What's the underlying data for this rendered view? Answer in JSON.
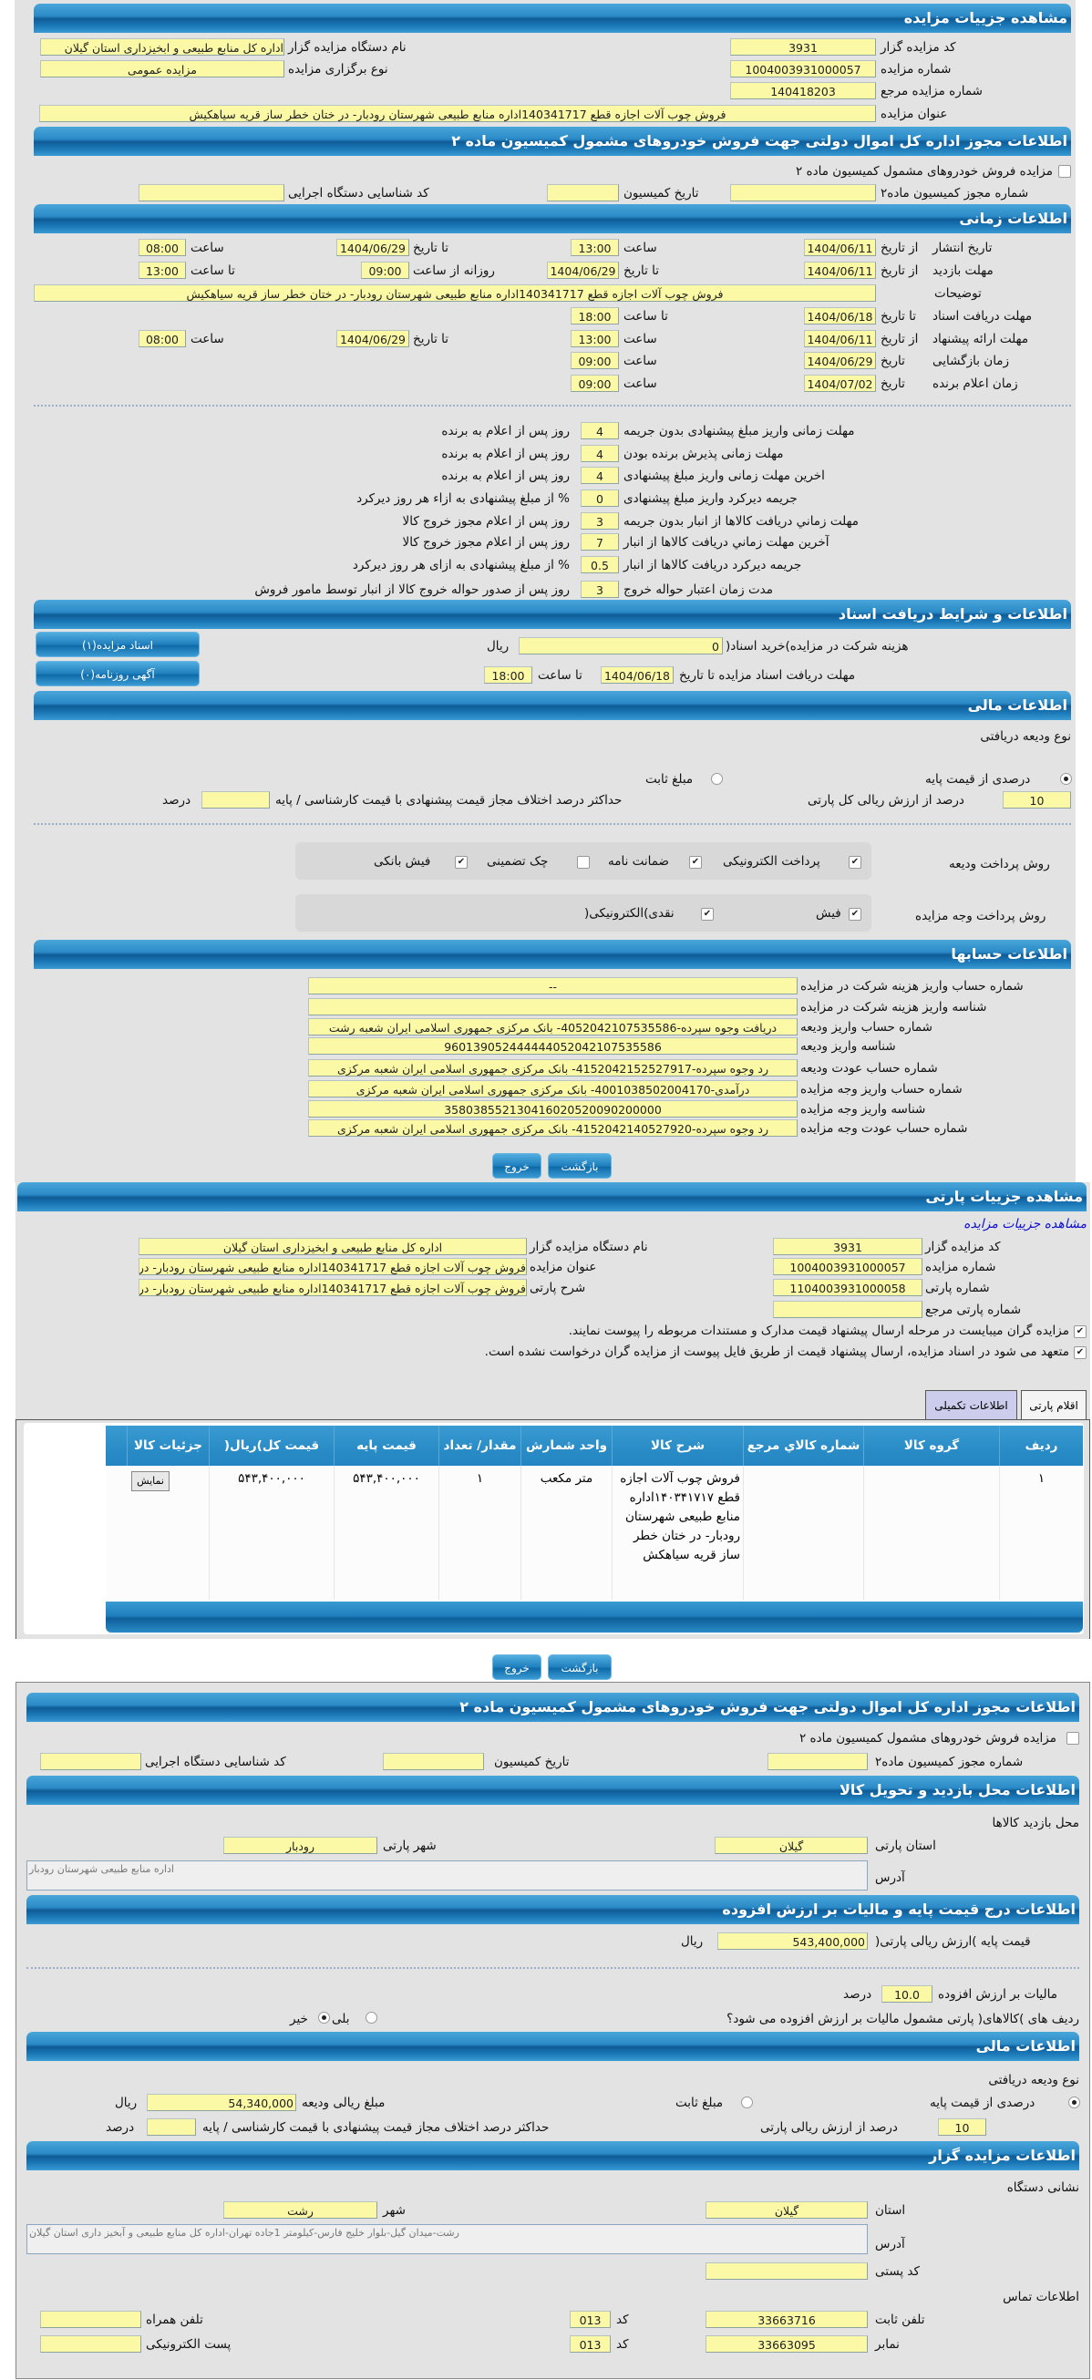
{
  "auction": {
    "title": "مشاهده جزییات مزایده",
    "auctioneer_code_label": "کد مزایده گزار",
    "auctioneer_code": "3931",
    "org_label": "نام دستگاه مزایده گزار",
    "org": "اداره کل منابع طبیعی و ابخیزداری استان گیلان",
    "number_label": "شماره مزایده",
    "number": "1004003931000057",
    "type_label": "نوع برگزاری مزایده",
    "type": "مزایده عمومی",
    "ref_label": "شماره مزایده مرجع",
    "ref": "140418203",
    "subject_label": "عنوان مزایده",
    "subject": "فروش چوب آلات اجازه قطع 140341717اداره منابع طبیعی شهرستان رودبار- در ختان خطر ساز قریه سیاهکیش"
  },
  "permit": {
    "title": "اطلاعات مجوز اداره کل اموال دولتی جهت فروش خودروهای مشمول کمیسیون ماده ۲",
    "checkbox_label": "مزایده فروش خودروهای مشمول کمیسیون ماده ۲",
    "checked": false,
    "permit_no_label": "شماره مجوز کمیسیون ماده۲",
    "permit_no": "",
    "date_label": "تاریخ کمیسیون",
    "date": "",
    "exec_id_label": "کد شناسایی دستگاه اجرایی",
    "exec_id": ""
  },
  "timing": {
    "title": "اطلاعات زمانی",
    "publish_label": "تاریخ انتشار",
    "from_date": "از تاریخ",
    "to_date": "تا تاریخ",
    "time": "ساعت",
    "to_time": "تا ساعت",
    "date": "تاریخ",
    "daily_from": "روزانه از ساعت",
    "publish_from": "1404/06/11",
    "publish_from_time": "13:00",
    "publish_to": "1404/06/29",
    "publish_to_time": "08:00",
    "visit_label": "مهلت بازدید",
    "visit_from": "1404/06/11",
    "visit_to": "1404/06/29",
    "visit_daily_from": "09:00",
    "visit_to_time": "13:00",
    "desc_label": "توضیحات",
    "desc": "فروش چوب آلات اجازه قطع 140341717اداره منابع طبیعی شهرستان رودبار- در ختان خطر ساز قریه سیاهکیش",
    "docs_label": "مهلت دریافت اسناد",
    "docs_to": "1404/06/18",
    "docs_to_time": "18:00",
    "offer_label": "مهلت ارائه پیشنهاد",
    "offer_from": "1404/06/11",
    "offer_from_time": "13:00",
    "offer_to": "1404/06/29",
    "offer_to_time": "08:00",
    "open_label": "زمان بازگشایی",
    "open_date": "1404/06/29",
    "open_time": "09:00",
    "winner_label": "زمان اعلام برنده",
    "winner_date": "1404/07/02",
    "winner_time": "09:00"
  },
  "terms": [
    {
      "label": "مهلت زمانی واریز مبلغ پیشنهادی بدون جریمه",
      "value": "4",
      "suffix": "روز پس از اعلام به برنده"
    },
    {
      "label": "مهلت زمانی پذیرش برنده بودن",
      "value": "4",
      "suffix": "روز پس از اعلام به برنده"
    },
    {
      "label": "اخرین مهلت زمانی واریز مبلغ پیشنهادی",
      "value": "4",
      "suffix": "روز پس از اعلام به برنده"
    },
    {
      "label": "جریمه دیرکرد واریز مبلغ پیشنهادی",
      "value": "0",
      "suffix": "% از مبلغ پیشنهادی به ازاء هر روز دیرکرد"
    },
    {
      "label": "مهلت زماني دريافت كالاها از انبار بدون جريمه",
      "value": "3",
      "suffix": "روز پس از اعلام مجوز خروج کالا"
    },
    {
      "label": "آخرين مهلت زماني دريافت كالاها از انبار",
      "value": "7",
      "suffix": "روز پس از اعلام مجوز خروج کالا"
    },
    {
      "label": "جریمه دیرکرد دریافت کالاها از انبار",
      "value": "0.5",
      "suffix": "% از مبلغ پیشنهادی به ازای هر روز دیرکرد"
    },
    {
      "label": "مدت زمان اعتبار حواله خروج",
      "value": "3",
      "suffix": "روز پس از صدور حواله خروج کالا از انبار توسط مامور فروش"
    }
  ],
  "docs": {
    "title": "اطلاعات و شرایط دریافت اسناد",
    "fee_label": "هزینه شرکت در مزایده)خرید اسناد(",
    "fee": "0",
    "rial": "ریال",
    "deadline_label": "مهلت دریافت اسناد مزایده تا تاریخ",
    "deadline": "1404/06/18",
    "to_time": "تا ساعت",
    "deadline_time": "18:00",
    "docs_button": "اسناد مزایده(۱)",
    "ad_button": "آگهی روزنامه(۰)"
  },
  "finance": {
    "title": "اطلاعات مالی",
    "deposit_type_label": "نوع ودیعه دریافتی",
    "percent_label": "درصدی از قیمت پایه",
    "fixed_label": "مبلغ ثابت",
    "selected": "percent",
    "percent": "10",
    "percent_of_label": "درصد از ارزش ریالی کل پارتی",
    "max_diff_label": "حداکثر درصد اختلاف مجاز قیمت پیشنهادی با قیمت کارشناسی / پایه",
    "max_diff": "",
    "percent_unit": "درصد",
    "deposit_method_label": "روش پرداخت ودیعه",
    "deposit_methods": [
      {
        "label": "پرداخت الکترونیکی",
        "checked": true
      },
      {
        "label": "ضمانت نامه",
        "checked": true
      },
      {
        "label": "چک تضمینی",
        "checked": false
      },
      {
        "label": "فیش بانکی",
        "checked": true
      }
    ],
    "payment_method_label": "روش پرداخت وجه مزایده",
    "payment_methods": [
      {
        "label": "فیش",
        "checked": true
      },
      {
        "label": "نقدی)الکترونیکی(",
        "checked": true
      }
    ]
  },
  "accounts": {
    "title": "اطلاعات حسابها",
    "rows": [
      {
        "label": "شماره حساب واریز هزینه شرکت در مزایده",
        "value": "--"
      },
      {
        "label": "شناسه واریز هزینه شرکت در مزایده",
        "value": ""
      },
      {
        "label": "شماره حساب واریز ودیعه",
        "value": "دریافت وجوه سپرده-4052042107535586- بانک مرکزی جمهوری اسلامی ایران شعبه رشت"
      },
      {
        "label": "شناسه واریز ودیعه",
        "value": "960139052444444052042107535586"
      },
      {
        "label": "شماره حساب عودت ودیعه",
        "value": "رد وجوه سپرده-4152042152527917- بانک مرکزی جمهوری اسلامی ایران شعبه مرکزی"
      },
      {
        "label": "شماره حساب واریز وجه مزایده",
        "value": "درآمدی-4001038502004170- بانک مرکزی جمهوری اسلامی ایران شعبه مرکزی"
      },
      {
        "label": "شناسه واریز وجه مزایده",
        "value": "358038552130416020520090200000"
      },
      {
        "label": "شماره حساب عودت وجه مزایده",
        "value": "رد وجوه سپرده-4152042140527920- بانک مرکزی جمهوری اسلامی ایران شعبه مرکزی"
      }
    ]
  },
  "buttons": {
    "back": "بازگشت",
    "exit": "خروج"
  },
  "lot": {
    "title": "مشاهده جزییات پارتی",
    "auction_link": "مشاهده جزییات مزایده",
    "auctioneer_code_label": "کد مزایده گزار",
    "auctioneer_code": "3931",
    "org_label": "نام دستگاه مزایده گزار",
    "org": "اداره کل منابع طبیعی و ابخیزداری استان گیلان",
    "number_label": "شماره مزایده",
    "number": "1004003931000057",
    "subject_label": "عنوان مزایده",
    "subject": "فروش چوب آلات اجازه قطع 140341717اداره منابع طبیعی شهرستان رودبار- در ختان خطر ساز قریه سیاهکیش",
    "lot_no_label": "شماره پارتی",
    "lot_no": "1104003931000058",
    "lot_desc_label": "شرح پارتی",
    "lot_desc": "فروش چوب آلات اجازه قطع 140341717اداره منابع طبیعی شهرستان رودبار- در ختان خطر ساز قریه سیاهکیش",
    "lot_ref_label": "شماره پارتی مرجع",
    "lot_ref": "",
    "check1": "مزایده گران میبایست در مرحله ارسال پیشنهاد قیمت مدارک و مستندات مربوطه را پیوست نمایند.",
    "check2": "متعهد می شود در اسناد مزایده، ارسال پیشنهاد قیمت از طریق فایل پیوست از مزایده گران درخواست نشده است.",
    "tabs": [
      {
        "label": "اقلام پارتی",
        "active": true
      },
      {
        "label": "اطلاعات تکمیلی",
        "active": false
      }
    ],
    "table": {
      "headers": [
        "ردیف",
        "گروه کالا",
        "شماره کالاي مرجع",
        "شرح کالا",
        "واحد شمارش",
        "مقدار/ تعداد",
        "قیمت پایه",
        "قیمت کل)ریال(",
        "جزئیات کالا"
      ],
      "rows": [
        [
          "۱",
          "",
          "",
          "فروش چوب آلات اجازه قطع ۱۴۰۳۴۱۷۱۷اداره منابع طبیعی شهرستان رودبار- در ختان خطر ساز قریه سیاهکش",
          "متر مکعب",
          "۱",
          "۵۴۳,۴۰۰,۰۰۰",
          "۵۴۳,۴۰۰,۰۰۰"
        ]
      ],
      "show_button": "نمایش"
    }
  },
  "extra": {
    "visit_title": "اطلاعات محل بازدید و تحویل کالا",
    "visit_place": "محل بازدید کالاها",
    "province_label": "استان پارتی",
    "province": "گیلان",
    "city_label": "شهر پارتی",
    "city": "رودبار",
    "address_label": "آدرس",
    "address": "اداره منابع طبیعی شهرستان رودبار",
    "price_title": "اطلاعات درج قیمت پایه و مالیات بر ارزش افزوده",
    "base_price_label": "قیمت پایه )ارزش ریالی پارتی(",
    "base_price": "543,400,000",
    "rial": "ریال",
    "vat_label": "مالیات بر ارزش افزوده",
    "vat": "10.0",
    "percent_unit": "درصد",
    "vat_q": "ردیف های )کالاهای( پارتی مشمول مالیات بر ارزش افزوده می شود؟",
    "yes": "بلی",
    "no": "خیر",
    "vat_selected": "no",
    "fin_title": "اطلاعات مالی",
    "deposit_type_label": "نوع ودیعه دریافتی",
    "percent_label": "درصدی از قیمت پایه",
    "fixed_label": "مبلغ ثابت",
    "deposit_amount_label": "مبلغ ریالی ودیعه",
    "deposit_amount": "54,340,000",
    "percent": "10",
    "percent_of_label": "درصد از ارزش ریالی پارتی",
    "max_diff_label": "حداکثر درصد اختلاف مجاز قیمت پیشنهادی با قیمت کارشناسی / پایه",
    "max_diff": "",
    "org_title": "اطلاعات مزایده گزار",
    "org_address": "نشانی دستگاه",
    "org_province_label": "استان",
    "org_province": "گیلان",
    "org_city_label": "شهر",
    "org_city": "رشت",
    "org_addr": "رشت-میدان گیل-بلوار خلیج فارس-کیلومتر 1جاده تهران-اداره کل منابع طبیعی و آبخیز داری استان گیلان",
    "postal_label": "کد پستی",
    "postal": "",
    "contact_label": "اطلاعات تماس",
    "phone_label": "تلفن ثابت",
    "phone": "33663716",
    "code_label": "کد",
    "phone_code": "013",
    "mobile_label": "تلفن همراه",
    "mobile": "",
    "fax_label": "نمابر",
    "fax": "33663095",
    "fax_code": "013",
    "email_label": "پست الکترونیکی",
    "email": ""
  },
  "colors": {
    "header": "#1b78b6",
    "field": "#fbf9a6",
    "panel": "#e3e3e3",
    "link": "#1010d0"
  }
}
